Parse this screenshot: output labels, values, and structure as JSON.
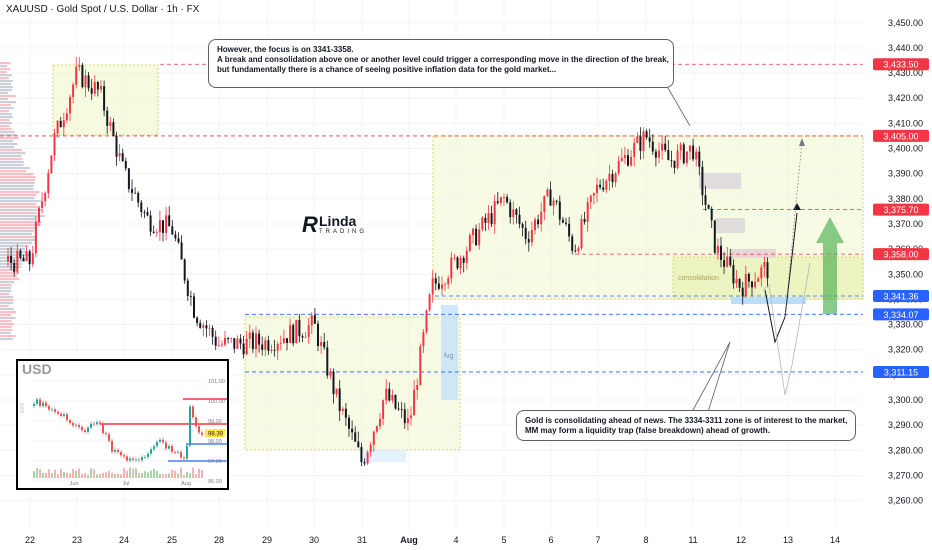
{
  "header": {
    "title": "XAUUSD · Gold Spot / U.S. Dollar · 1h · FX"
  },
  "callouts": {
    "top": [
      "However, the focus is on 3341-3358.",
      "A break and consolidation above one or another level could trigger a corresponding move in the direction of the break,",
      "but fundamentally there is a chance of seeing positive inflation data for the gold market..."
    ],
    "bottom": [
      "Gold is consolidating ahead of news. The 3334-3311 zone is of interest to the market,",
      "MM may form a liquidity trap (false breakdown) ahead of growth."
    ]
  },
  "logo": {
    "letter": "R",
    "word": "Linda",
    "sub": "TRADING"
  },
  "zone_labels": {
    "consolidation": "consolidation",
    "fvg": "fvg"
  },
  "inset": {
    "title": "USD",
    "axis_label": "DXY",
    "price_ticks": [
      "101.00",
      "100.00",
      "99.00",
      "98.00",
      "97.00",
      "96.00"
    ],
    "badge": "98.39",
    "months": [
      "Jun",
      "Jul",
      "Aug"
    ]
  },
  "colors": {
    "up": "#f23645",
    "down": "#131722",
    "level_red": "#f23645",
    "level_blue": "#2962ff",
    "zone_fill": "#f0f7c8",
    "zone_border": "#d4c64a",
    "arrow_green": "#4caf50"
  },
  "chart_data": {
    "type": "candlestick",
    "symbol": "XAUUSD",
    "timeframe": "1h",
    "y_axis": {
      "min": 3255,
      "max": 3455,
      "ticks": [
        3450,
        3440,
        3430,
        3420,
        3410,
        3400,
        3390,
        3380,
        3370,
        3360,
        3350,
        3340,
        3330,
        3320,
        3310,
        3300,
        3290,
        3280,
        3270,
        3260
      ],
      "tick_labels": [
        "3,450.00",
        "3,440.00",
        "3,430.00",
        "3,420.00",
        "3,410.00",
        "3,400.00",
        "3,390.00",
        "3,380.00",
        "3,370.00",
        "3,360.00",
        "3,350.00",
        "3,340.00",
        "3,330.00",
        "3,320.00",
        "3,310.00",
        "3,300.00",
        "3,290.00",
        "3,280.00",
        "3,270.00",
        "3,260.00"
      ]
    },
    "x_axis": {
      "labels": [
        "22",
        "23",
        "24",
        "25",
        "28",
        "29",
        "30",
        "31",
        "Aug",
        "4",
        "5",
        "6",
        "7",
        "8",
        "11",
        "12",
        "13",
        "14"
      ]
    },
    "levels": [
      {
        "price": 3433.5,
        "label": "3,433.50",
        "tag": "poi",
        "color": "red"
      },
      {
        "price": 3405.0,
        "label": "3,405.00",
        "tag": "poi",
        "color": "red"
      },
      {
        "price": 3375.7,
        "label": "3,375.70",
        "tag": "",
        "color": "red"
      },
      {
        "price": 3358.0,
        "label": "3,358.00",
        "tag": "eqh",
        "color": "red"
      },
      {
        "price": 3341.36,
        "label": "3,341.36",
        "tag": "eql",
        "color": "blue"
      },
      {
        "price": 3334.07,
        "label": "3,334.07",
        "tag": "",
        "color": "blue"
      },
      {
        "price": 3311.15,
        "label": "3,311.15",
        "tag": "",
        "color": "blue"
      }
    ],
    "price_path": [
      {
        "day": "22",
        "price": 3355
      },
      {
        "day": "22",
        "price": 3402
      },
      {
        "day": "23",
        "price": 3430
      },
      {
        "day": "23",
        "price": 3422
      },
      {
        "day": "24",
        "price": 3390
      },
      {
        "day": "24",
        "price": 3372
      },
      {
        "day": "25",
        "price": 3368
      },
      {
        "day": "25",
        "price": 3335
      },
      {
        "day": "28",
        "price": 3322
      },
      {
        "day": "29",
        "price": 3323
      },
      {
        "day": "30",
        "price": 3330
      },
      {
        "day": "30",
        "price": 3300
      },
      {
        "day": "31",
        "price": 3275
      },
      {
        "day": "31",
        "price": 3302
      },
      {
        "day": "Aug",
        "price": 3290
      },
      {
        "day": "Aug",
        "price": 3345
      },
      {
        "day": "4",
        "price": 3355
      },
      {
        "day": "5",
        "price": 3380
      },
      {
        "day": "5",
        "price": 3365
      },
      {
        "day": "6",
        "price": 3382
      },
      {
        "day": "6",
        "price": 3360
      },
      {
        "day": "7",
        "price": 3385
      },
      {
        "day": "8",
        "price": 3405
      },
      {
        "day": "8",
        "price": 3395
      },
      {
        "day": "11",
        "price": 3400
      },
      {
        "day": "11",
        "price": 3360
      },
      {
        "day": "12",
        "price": 3345
      },
      {
        "day": "12",
        "price": 3352
      }
    ]
  }
}
